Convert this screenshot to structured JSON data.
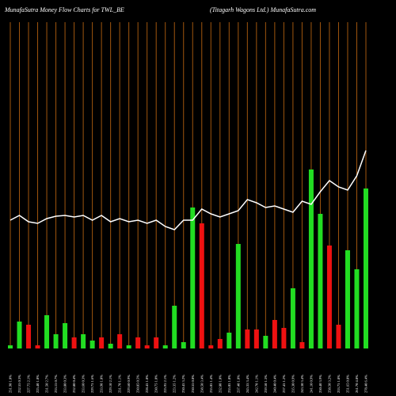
{
  "chart_data": {
    "type": "bar-line",
    "title": "MunafaSutra  Money Flow  Charts for TWL_BE",
    "subtitle": "(Titagarh Wagons Ltd.) MunafaSutra.com",
    "categories": [
      "231.90 1.0%",
      "232.55 0.3%",
      "227.75 2.1%",
      "225.40 1.0%",
      "231.50 2.7%",
      "233.15 0.7%",
      "233.80 0.3%",
      "232.80 0.4%",
      "233.60 0.3%",
      "229.75 1.6%",
      "233.90 1.8%",
      "229.10 2.1%",
      "231.70 1.1%",
      "229.60 0.9%",
      "230.85 0.5%",
      "228.45 1.0%",
      "230.75 1.0%",
      "225.95 2.1%",
      "223.35 1.2%",
      "230.45 3.2%",
      "230.55 0.0%",
      "238.50 3.4%",
      "235.05 1.4%",
      "232.80 1.0%",
      "235.05 1.0%",
      "237.40 1.0%",
      "245.35 3.4%",
      "242.70 1.1%",
      "239.50 1.3%",
      "240.40 0.4%",
      "237.45 1.2%",
      "235.30 0.9%",
      "243.30 3.4%",
      "241.10 0.9%",
      "250.40 3.9%",
      "258.50 3.2%",
      "253.75 1.8%",
      "251.65 0.8%",
      "261.70 4.0%",
      "278.40 6.4%"
    ],
    "series": [
      {
        "color": "#22dd22",
        "down_color": "#ee1111",
        "directions": [
          "up",
          "up",
          "down",
          "down",
          "up",
          "up",
          "up",
          "down",
          "up",
          "up",
          "down",
          "up",
          "down",
          "up",
          "down",
          "down",
          "down",
          "up",
          "up",
          "up",
          "up",
          "down",
          "down",
          "down",
          "up",
          "up",
          "down",
          "down",
          "up",
          "down",
          "down",
          "up",
          "down",
          "up",
          "up",
          "down",
          "down",
          "up",
          "up",
          "up"
        ],
        "values": [
          4,
          34,
          30,
          4,
          42,
          18,
          32,
          14,
          18,
          10,
          14,
          6,
          18,
          4,
          14,
          4,
          14,
          4,
          54,
          8,
          178,
          158,
          4,
          12,
          20,
          132,
          24,
          24,
          16,
          36,
          26,
          76,
          8,
          226,
          170,
          130,
          30,
          124,
          100,
          202
        ]
      },
      {
        "color": "#ffffff",
        "values": [
          162,
          168,
          160,
          158,
          164,
          167,
          168,
          166,
          168,
          162,
          168,
          160,
          164,
          160,
          162,
          158,
          162,
          154,
          150,
          162,
          162,
          176,
          170,
          166,
          170,
          174,
          188,
          184,
          178,
          180,
          176,
          172,
          186,
          182,
          198,
          212,
          204,
          200,
          218,
          250
        ]
      }
    ],
    "grid": true,
    "grid_color": "#a0560e",
    "background": "#000000"
  }
}
